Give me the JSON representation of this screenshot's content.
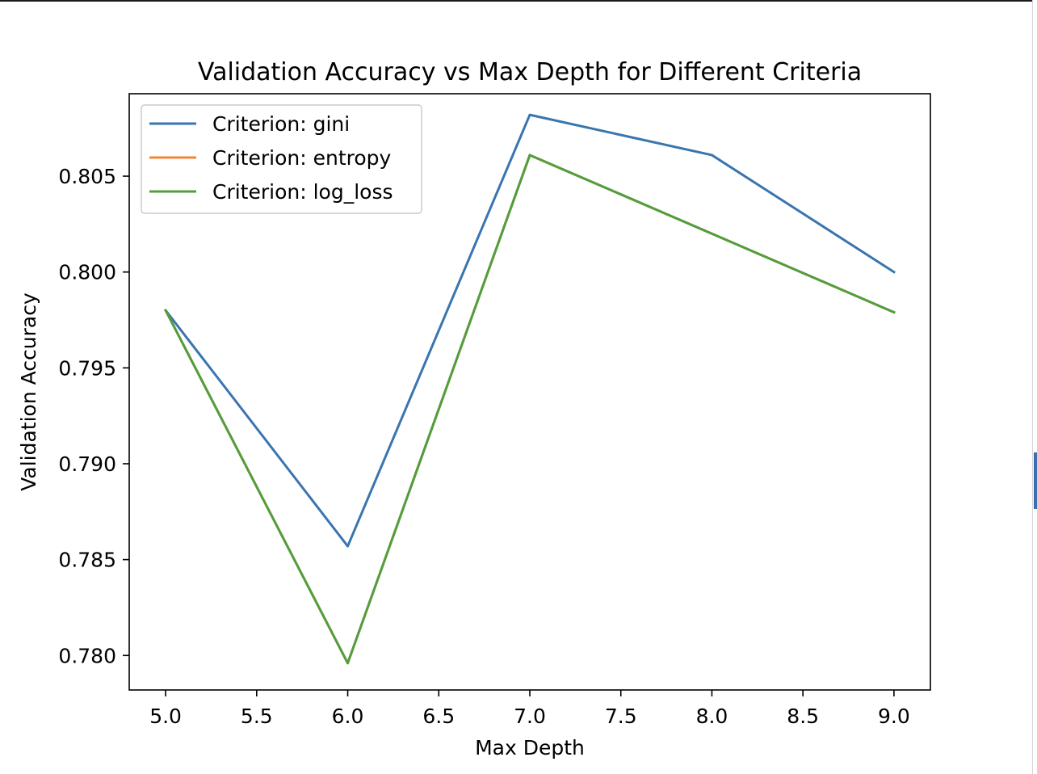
{
  "chart_data": {
    "type": "line",
    "title": "Validation Accuracy vs Max Depth for Different Criteria",
    "xlabel": "Max Depth",
    "ylabel": "Validation Accuracy",
    "xlim": [
      4.8,
      9.2
    ],
    "ylim": [
      0.7782,
      0.8093
    ],
    "xticks": [
      5.0,
      5.5,
      6.0,
      6.5,
      7.0,
      7.5,
      8.0,
      8.5,
      9.0
    ],
    "xtick_labels": [
      "5.0",
      "5.5",
      "6.0",
      "6.5",
      "7.0",
      "7.5",
      "8.0",
      "8.5",
      "9.0"
    ],
    "yticks": [
      0.78,
      0.785,
      0.79,
      0.795,
      0.8,
      0.805
    ],
    "ytick_labels": [
      "0.780",
      "0.785",
      "0.790",
      "0.795",
      "0.800",
      "0.805"
    ],
    "grid": false,
    "legend_position": "upper-left",
    "x": [
      5,
      6,
      7,
      8,
      9
    ],
    "series": [
      {
        "name": "Criterion: gini",
        "color": "#3a75af",
        "values": [
          0.798,
          0.7857,
          0.8082,
          0.8061,
          0.8
        ]
      },
      {
        "name": "Criterion: entropy",
        "color": "#ef8636",
        "values": [
          0.798,
          0.7796,
          0.8061,
          0.802,
          0.7979
        ]
      },
      {
        "name": "Criterion: log_loss",
        "color": "#519e3e",
        "values": [
          0.798,
          0.7796,
          0.8061,
          0.802,
          0.7979
        ]
      }
    ]
  }
}
